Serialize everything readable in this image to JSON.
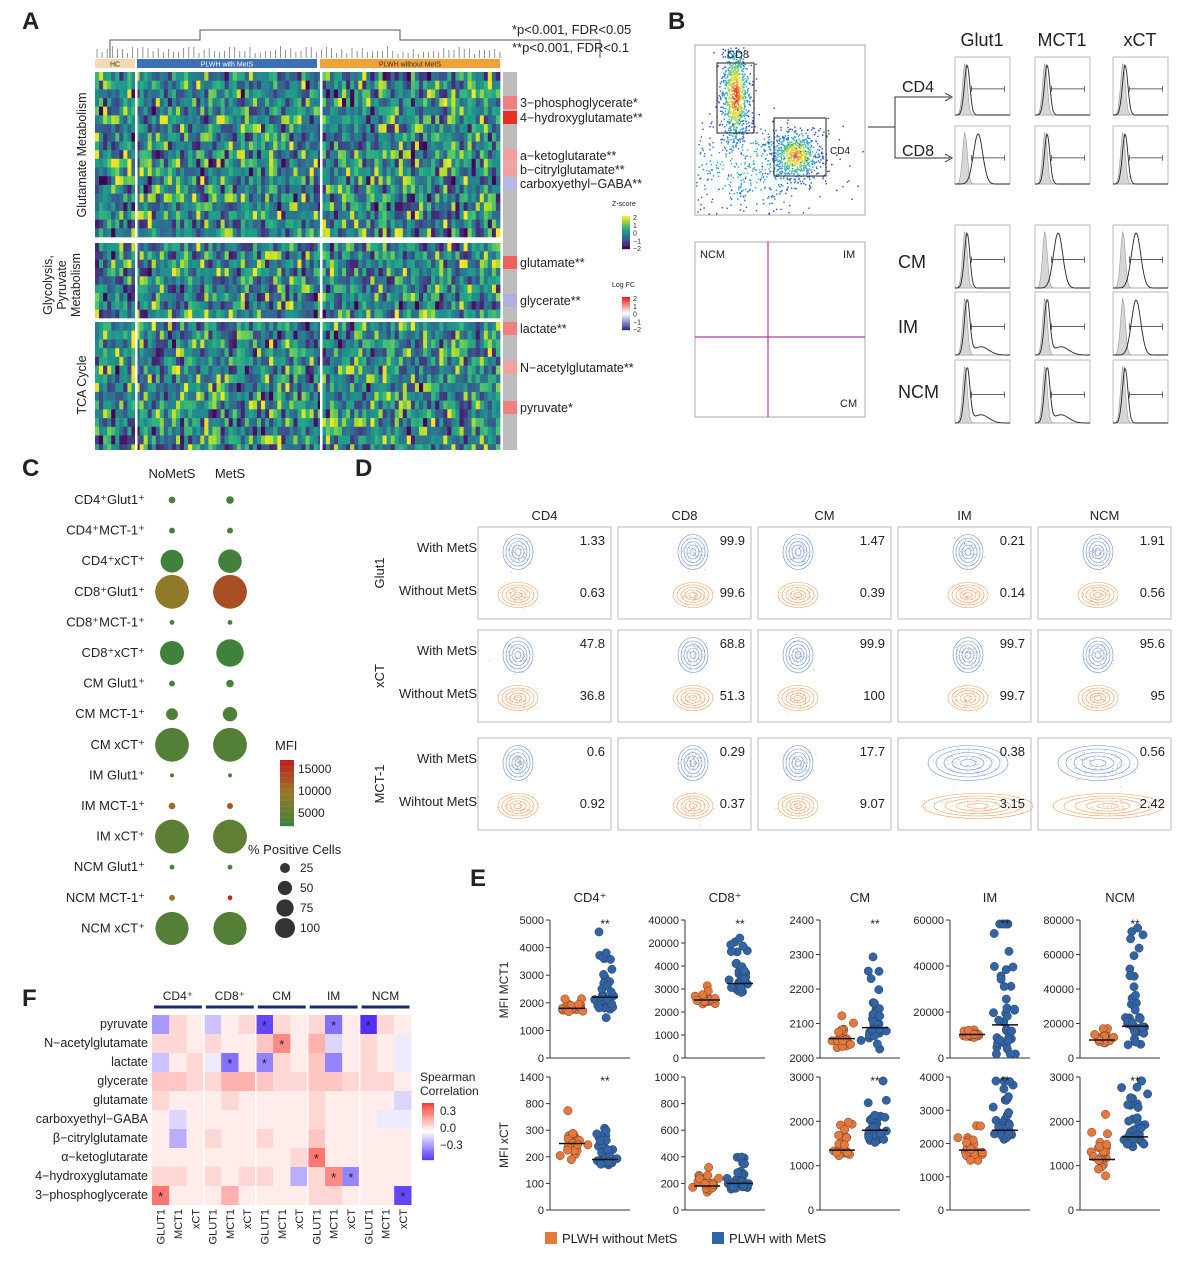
{
  "panel_labels": [
    "A",
    "B",
    "C",
    "D",
    "E",
    "F"
  ],
  "panelA": {
    "significance_note_1": "*p<0.001, FDR<0.05",
    "significance_note_2": "**p<0.001, FDR<0.1",
    "groups": [
      "HC",
      "PLWH with MetS",
      "PLWH without MetS"
    ],
    "row_groups": [
      "Glutamate Metabolism",
      "Glycolysis, Pyruvate Metabolism",
      "TCA Cycle"
    ],
    "metabolites": [
      "3−phosphoglycerate*",
      "4−hydroxyglutamate**",
      "a−ketoglutarate**",
      "b−citrylglutamate**",
      "carboxyethyl−GABA**",
      "glutamate**",
      "glycerate**",
      "lactate**",
      "N−acetylglutamate**",
      "pyruvate*"
    ],
    "zscore_title": "Z-score",
    "zscore_ticks": [
      "2",
      "1",
      "0",
      "−1",
      "−2"
    ],
    "logfc_title": "Log FC",
    "logfc_ticks": [
      "2",
      "1",
      "0",
      "−1",
      "−2"
    ],
    "colors": {
      "hc": "#f6d9b3",
      "mets": "#3d6fb6",
      "nomets": "#f0a13a"
    }
  },
  "panelB": {
    "gate_labels": [
      "CD8",
      "CD4",
      "NCM",
      "IM",
      "CM"
    ],
    "marker_headers": [
      "Glut1",
      "MCT1",
      "xCT"
    ],
    "rows_top": [
      "CD4",
      "CD8"
    ],
    "rows_bottom": [
      "CM",
      "IM",
      "NCM"
    ]
  },
  "panelC": {
    "columns": [
      "NoMetS",
      "MetS"
    ],
    "rows": [
      {
        "label": "CD4⁺Glut1⁺",
        "nomets": {
          "pct": 4,
          "mfi": 3000
        },
        "mets": {
          "pct": 5,
          "mfi": 3000
        }
      },
      {
        "label": "CD4⁺MCT-1⁺",
        "nomets": {
          "pct": 3,
          "mfi": 3000
        },
        "mets": {
          "pct": 3,
          "mfi": 3000
        }
      },
      {
        "label": "CD4⁺xCT⁺",
        "nomets": {
          "pct": 45,
          "mfi": 2500
        },
        "mets": {
          "pct": 48,
          "mfi": 2500
        }
      },
      {
        "label": "CD8⁺Glut1⁺",
        "nomets": {
          "pct": 99,
          "mfi": 9000
        },
        "mets": {
          "pct": 99,
          "mfi": 13000
        }
      },
      {
        "label": "CD8⁺MCT-1⁺",
        "nomets": {
          "pct": 2,
          "mfi": 3000
        },
        "mets": {
          "pct": 2,
          "mfi": 3000
        }
      },
      {
        "label": "CD8⁺xCT⁺",
        "nomets": {
          "pct": 50,
          "mfi": 2500
        },
        "mets": {
          "pct": 65,
          "mfi": 2500
        }
      },
      {
        "label": "CM Glut1⁺",
        "nomets": {
          "pct": 3,
          "mfi": 3000
        },
        "mets": {
          "pct": 5,
          "mfi": 3000
        }
      },
      {
        "label": "CM MCT-1⁺",
        "nomets": {
          "pct": 12,
          "mfi": 3500
        },
        "mets": {
          "pct": 18,
          "mfi": 3500
        }
      },
      {
        "label": "CM xCT⁺",
        "nomets": {
          "pct": 99,
          "mfi": 4000
        },
        "mets": {
          "pct": 99,
          "mfi": 4000
        }
      },
      {
        "label": "IM Glut1⁺",
        "nomets": {
          "pct": 1,
          "mfi": 3000
        },
        "mets": {
          "pct": 1,
          "mfi": 3000
        }
      },
      {
        "label": "IM MCT-1⁺",
        "nomets": {
          "pct": 4,
          "mfi": 10000
        },
        "mets": {
          "pct": 3,
          "mfi": 13000
        }
      },
      {
        "label": "IM xCT⁺",
        "nomets": {
          "pct": 99,
          "mfi": 4500
        },
        "mets": {
          "pct": 99,
          "mfi": 5000
        }
      },
      {
        "label": "NCM Glut1⁺",
        "nomets": {
          "pct": 2,
          "mfi": 3000
        },
        "mets": {
          "pct": 2,
          "mfi": 3000
        }
      },
      {
        "label": "NCM MCT-1⁺",
        "nomets": {
          "pct": 3,
          "mfi": 10000
        },
        "mets": {
          "pct": 2,
          "mfi": 16000
        }
      },
      {
        "label": "NCM xCT⁺",
        "nomets": {
          "pct": 95,
          "mfi": 4000
        },
        "mets": {
          "pct": 95,
          "mfi": 4000
        }
      }
    ],
    "mfi_title": "MFI",
    "mfi_ticks": [
      "15000",
      "10000",
      "5000"
    ],
    "size_title": "% Positive Cells",
    "size_ticks": [
      "25",
      "50",
      "75",
      "100"
    ]
  },
  "panelD": {
    "columns": [
      "CD4",
      "CD8",
      "CM",
      "IM",
      "NCM"
    ],
    "row_markers": [
      "Glut1",
      "xCT",
      "MCT-1"
    ],
    "row_labels": [
      [
        "With MetS",
        "Without MetS"
      ],
      [
        "With MetS",
        "Without MetS"
      ],
      [
        "With MetS",
        "Wihtout MetS"
      ]
    ],
    "values": [
      [
        [
          "1.33",
          "0.63"
        ],
        [
          "99.9",
          "99.6"
        ],
        [
          "1.47",
          "0.39"
        ],
        [
          "0.21",
          "0.14"
        ],
        [
          "1.91",
          "0.56"
        ]
      ],
      [
        [
          "47.8",
          "36.8"
        ],
        [
          "68.8",
          "51.3"
        ],
        [
          "99.9",
          "100"
        ],
        [
          "99.7",
          "99.7"
        ],
        [
          "95.6",
          "95"
        ]
      ],
      [
        [
          "0.6",
          "0.92"
        ],
        [
          "0.29",
          "0.37"
        ],
        [
          "17.7",
          "9.07"
        ],
        [
          "0.38",
          "3.15"
        ],
        [
          "0.56",
          "2.42"
        ]
      ]
    ]
  },
  "panelE": {
    "col_titles": [
      "CD4⁺",
      "CD8⁺",
      "CM",
      "IM",
      "NCM"
    ],
    "ylabel_top": "MFI MCT1",
    "ylabel_bottom": "MFI xCT",
    "stars": "**",
    "top_ticks": [
      [
        "5000",
        "4000",
        "3000",
        "2000",
        "1000",
        "0"
      ],
      [
        "40000",
        "20000",
        "4000",
        "3000",
        "2000",
        "1000",
        "0"
      ],
      [
        "2400",
        "2300",
        "2200",
        "2100",
        "2000"
      ],
      [
        "60000",
        "40000",
        "20000",
        "0"
      ],
      [
        "80000",
        "60000",
        "40000",
        "20000",
        "0"
      ]
    ],
    "bottom_ticks": [
      [
        "1400",
        "800",
        "300",
        "200",
        "100",
        "0"
      ],
      [
        "1000",
        "800",
        "600",
        "400",
        "200",
        "0"
      ],
      [
        "3000",
        "2000",
        "1000",
        "0"
      ],
      [
        "4000",
        "3000",
        "2000",
        "1000",
        "0"
      ],
      [
        "3000",
        "2000",
        "1000",
        "0"
      ]
    ],
    "legend": [
      "PLWH without MetS",
      "PLWH with MetS"
    ],
    "colors": {
      "without": "#e8783a",
      "with": "#2f64a8"
    }
  },
  "panelF": {
    "cell_groups": [
      "CD4⁺",
      "CD8⁺",
      "CM",
      "IM",
      "NCM"
    ],
    "col_labels": [
      "GLUT1",
      "MCT1",
      "xCT",
      "GLUT1",
      "MCT1",
      "xCT",
      "GLUT1",
      "MCT1",
      "xCT",
      "GLUT1",
      "MCT1",
      "xCT",
      "GLUT1",
      "MCT1",
      "xCT"
    ],
    "row_labels": [
      "pyruvate",
      "N−acetylglutamate",
      "lactate",
      "glycerate",
      "glutamate",
      "carboxyethyl−GABA",
      "β−citrylglutamate",
      "α−ketoglutarate",
      "4−hydroxyglutamate",
      "3−phosphoglycerate"
    ],
    "legend_title_1": "Spearman",
    "legend_title_2": "Correlation",
    "legend_ticks": [
      "0.3",
      "0.0",
      "−0.3"
    ],
    "star": "*",
    "matrix": [
      [
        -0.25,
        0.1,
        0.05,
        -0.15,
        0.05,
        0.1,
        -0.45,
        0.1,
        0.05,
        0.1,
        -0.35,
        0.05,
        -0.5,
        0.1,
        0.05
      ],
      [
        0.1,
        0.1,
        0.05,
        0.1,
        0.05,
        0.05,
        0.15,
        0.3,
        0.05,
        0.2,
        -0.1,
        0.05,
        0.1,
        0.05,
        -0.05
      ],
      [
        -0.15,
        0.05,
        0.1,
        -0.05,
        -0.35,
        0.05,
        -0.3,
        0.1,
        0.05,
        0.15,
        -0.3,
        0.05,
        0.1,
        0.05,
        -0.05
      ],
      [
        0.15,
        0.15,
        0.1,
        0.1,
        0.2,
        0.2,
        0.15,
        0.1,
        0.1,
        0.15,
        0.15,
        0.1,
        0.1,
        0.1,
        0.05
      ],
      [
        0.1,
        0.05,
        0.05,
        0.05,
        0.1,
        0.05,
        0.05,
        0.05,
        0.05,
        0.1,
        0.05,
        0.05,
        0.05,
        0.05,
        -0.1
      ],
      [
        0.05,
        -0.1,
        0.05,
        0.05,
        0.05,
        0.05,
        0.05,
        0.05,
        0.05,
        0.1,
        0.05,
        0.05,
        0.05,
        -0.05,
        -0.05
      ],
      [
        0.05,
        -0.2,
        0.05,
        0.1,
        0.05,
        0.05,
        0.1,
        0.05,
        0.05,
        0.15,
        0.05,
        0.05,
        0.05,
        0.05,
        0.05
      ],
      [
        0.05,
        0.05,
        0.05,
        0.05,
        0.05,
        0.05,
        0.05,
        0.05,
        0.1,
        0.35,
        0.05,
        0.05,
        0.05,
        0.05,
        0.05
      ],
      [
        0.1,
        0.1,
        0.05,
        0.1,
        0.05,
        0.1,
        0.1,
        0.05,
        -0.2,
        0.1,
        0.3,
        -0.3,
        0.05,
        0.05,
        0.05
      ],
      [
        0.35,
        0.05,
        0.05,
        0.05,
        0.2,
        0.05,
        0.05,
        0.05,
        0.05,
        0.1,
        0.1,
        0.05,
        0.05,
        0.05,
        -0.45
      ]
    ],
    "stars_at": [
      [
        0,
        6
      ],
      [
        0,
        10
      ],
      [
        0,
        12
      ],
      [
        1,
        7
      ],
      [
        2,
        4
      ],
      [
        2,
        6
      ],
      [
        7,
        9
      ],
      [
        8,
        10
      ],
      [
        8,
        11
      ],
      [
        9,
        0
      ],
      [
        9,
        14
      ]
    ]
  }
}
